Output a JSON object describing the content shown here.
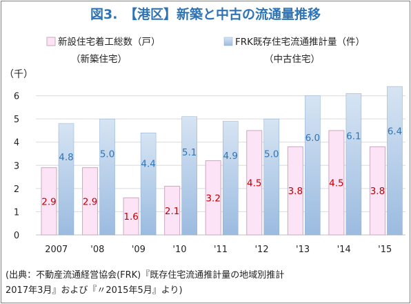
{
  "colors": {
    "title": "#2e74b5",
    "new_bar_fill": "#fde3f6",
    "new_bar_stroke": "#c9a9c0",
    "used_bar_top": "#d6e4f3",
    "used_bar_bottom": "#9bbbe0",
    "new_label": "#c00000",
    "used_label": "#2e74b5",
    "grid": "#d9d9d9"
  },
  "chart_data": {
    "type": "bar",
    "title": "図3.　【港区】新築と中古の流通量推移",
    "ylabel": "（千）",
    "ylim": [
      0,
      7
    ],
    "yticks": [
      "0",
      "1",
      "2",
      "3",
      "4",
      "5",
      "6"
    ],
    "grid": true,
    "legend_position": "top",
    "categories": [
      "2007",
      "'08",
      "'09",
      "'10",
      "'11",
      "'12",
      "'13",
      "'14",
      "'15"
    ],
    "series": [
      {
        "name": "新設住宅着工総数（戸）",
        "sublabel": "（新築住宅）",
        "values": [
          2.9,
          2.9,
          1.6,
          2.1,
          3.2,
          4.5,
          3.8,
          4.5,
          3.8
        ],
        "labels": [
          "2.9",
          "2.9",
          "1.6",
          "2.1",
          "3.2",
          "4.5",
          "3.8",
          "4.5",
          "3.8"
        ]
      },
      {
        "name": "FRK既存住宅流通推計量（件）",
        "sublabel": "（中古住宅）",
        "values": [
          4.8,
          5.0,
          4.4,
          5.1,
          4.9,
          5.0,
          6.0,
          6.1,
          6.4
        ],
        "labels": [
          "4.8",
          "5.0",
          "4.4",
          "5.1",
          "4.9",
          "5.0",
          "6.0",
          "6.1",
          "6.4"
        ]
      }
    ]
  },
  "source": {
    "line1": "(出典：不動産流通経営協会(FRK)『既存住宅流通推計量の地域別推計",
    "line2": "2017年3月』および『〃2015年5月』より)"
  }
}
